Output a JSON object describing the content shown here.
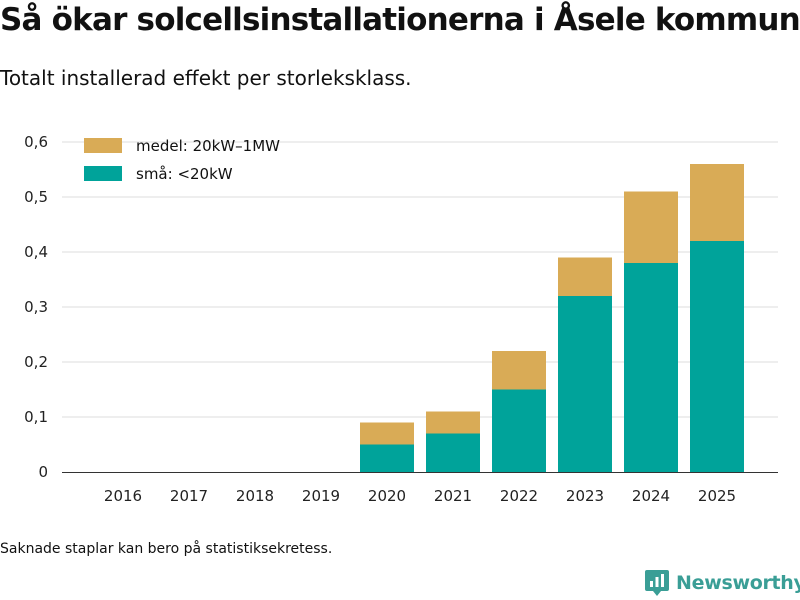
{
  "header": {
    "title": "Så ökar solcellsinstallationerna i Åsele kommun",
    "subtitle": "Totalt installerad effekt per storleksklass."
  },
  "footer": {
    "note": "Saknade staplar kan bero på statistiksekretess.",
    "brand": "Newsworthy",
    "brand_icon": "newsworthy-logo-icon"
  },
  "colors": {
    "medel": "#d9ab56",
    "sma": "#00a39a",
    "grid": "#dddddd",
    "axis": "#333333",
    "brand": "#3a9e96"
  },
  "chart_data": {
    "type": "bar",
    "stacked": true,
    "title": "Så ökar solcellsinstallationerna i Åsele kommun",
    "subtitle": "Totalt installerad effekt per storleksklass.",
    "xlabel": "",
    "ylabel": "",
    "ylim": [
      0,
      0.6
    ],
    "yticks": [
      0,
      0.1,
      0.2,
      0.3,
      0.4,
      0.5,
      0.6
    ],
    "ytick_labels": [
      "0",
      "0,1",
      "0,2",
      "0,3",
      "0,4",
      "0,5",
      "0,6"
    ],
    "grid": true,
    "legend_position": "top-left",
    "categories": [
      "2016",
      "2017",
      "2018",
      "2019",
      "2020",
      "2021",
      "2022",
      "2023",
      "2024",
      "2025"
    ],
    "series": [
      {
        "name": "små: <20kW",
        "key": "sma",
        "values": [
          null,
          null,
          null,
          null,
          0.05,
          0.07,
          0.15,
          0.32,
          0.38,
          0.42
        ]
      },
      {
        "name": "medel: 20kW–1MW",
        "key": "medel",
        "values": [
          null,
          null,
          null,
          null,
          0.04,
          0.04,
          0.07,
          0.07,
          0.13,
          0.14
        ]
      }
    ],
    "legend": [
      {
        "label": "medel: 20kW–1MW",
        "key": "medel"
      },
      {
        "label": "små: <20kW",
        "key": "sma"
      }
    ]
  }
}
